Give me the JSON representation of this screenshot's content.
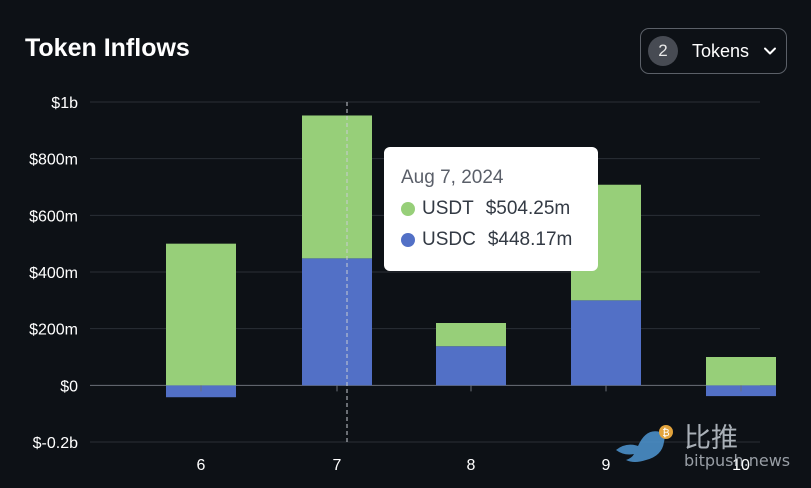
{
  "header": {
    "title": "Token Inflows"
  },
  "token_selector": {
    "count": "2",
    "label": "Tokens",
    "icon": "chevron-down-icon"
  },
  "tooltip": {
    "date": "Aug 7, 2024",
    "rows": [
      {
        "name": "USDT",
        "value": "$504.25m",
        "color": "#97cf79"
      },
      {
        "name": "USDC",
        "value": "$448.17m",
        "color": "#5270c6"
      }
    ]
  },
  "watermark": {
    "cn": "比推",
    "en": "bitpush.news",
    "icon": "bird-logo-icon"
  },
  "colors": {
    "background": "#0d1116",
    "usdt": "#97cf79",
    "usdc": "#5270c6",
    "grid": "#2a2f36",
    "axis_text": "#ffffff"
  },
  "chart_data": {
    "type": "bar",
    "stacked": true,
    "categories": [
      "6",
      "7",
      "8",
      "9",
      "10"
    ],
    "series": [
      {
        "name": "USDC",
        "values": [
          -42,
          448.17,
          138,
          300,
          -38
        ],
        "color": "#5270c6"
      },
      {
        "name": "USDT",
        "values": [
          500,
          504.25,
          82,
          408,
          100
        ],
        "color": "#97cf79"
      }
    ],
    "ylim": [
      -200,
      1000
    ],
    "yticks": [
      {
        "value": 1000,
        "label": "$1b"
      },
      {
        "value": 800,
        "label": "$800m"
      },
      {
        "value": 600,
        "label": "$600m"
      },
      {
        "value": 400,
        "label": "$400m"
      },
      {
        "value": 200,
        "label": "$200m"
      },
      {
        "value": 0,
        "label": "$0"
      },
      {
        "value": -200,
        "label": "$-0.2b"
      }
    ],
    "hover_category": "7",
    "grid": true,
    "legend": "none"
  }
}
